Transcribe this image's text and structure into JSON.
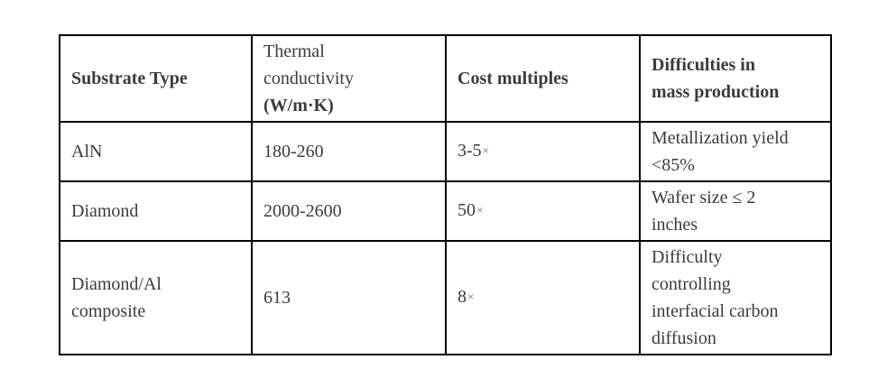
{
  "table": {
    "columns": [
      {
        "label": "Substrate Type"
      },
      {
        "label_lines": [
          "Thermal",
          "conductivity"
        ],
        "unit": "(W/m·K)"
      },
      {
        "label": "Cost multiples"
      },
      {
        "label_lines": [
          "Difficulties in",
          "mass production"
        ]
      }
    ],
    "rows": [
      {
        "substrate_lines": [
          "AlN"
        ],
        "conductivity": "180-260",
        "cost": {
          "value": "3-5",
          "symbol": "×"
        },
        "difficulty_lines": [
          "Metallization yield",
          "<85%"
        ]
      },
      {
        "substrate_lines": [
          "Diamond"
        ],
        "conductivity": "2000-2600",
        "cost": {
          "value": "50",
          "symbol": "×"
        },
        "difficulty_lines": [
          "Wafer size ≤ 2",
          "inches"
        ]
      },
      {
        "substrate_lines": [
          "Diamond/Al",
          "composite"
        ],
        "conductivity": "613",
        "cost": {
          "value": "8",
          "symbol": "×"
        },
        "difficulty_lines": [
          "Difficulty",
          "controlling",
          "interfacial carbon",
          "diffusion"
        ]
      }
    ]
  },
  "colors": {
    "text": "#3b3b3d",
    "border": "#000000",
    "background": "#ffffff",
    "times_symbol": "#6b6b6b"
  }
}
